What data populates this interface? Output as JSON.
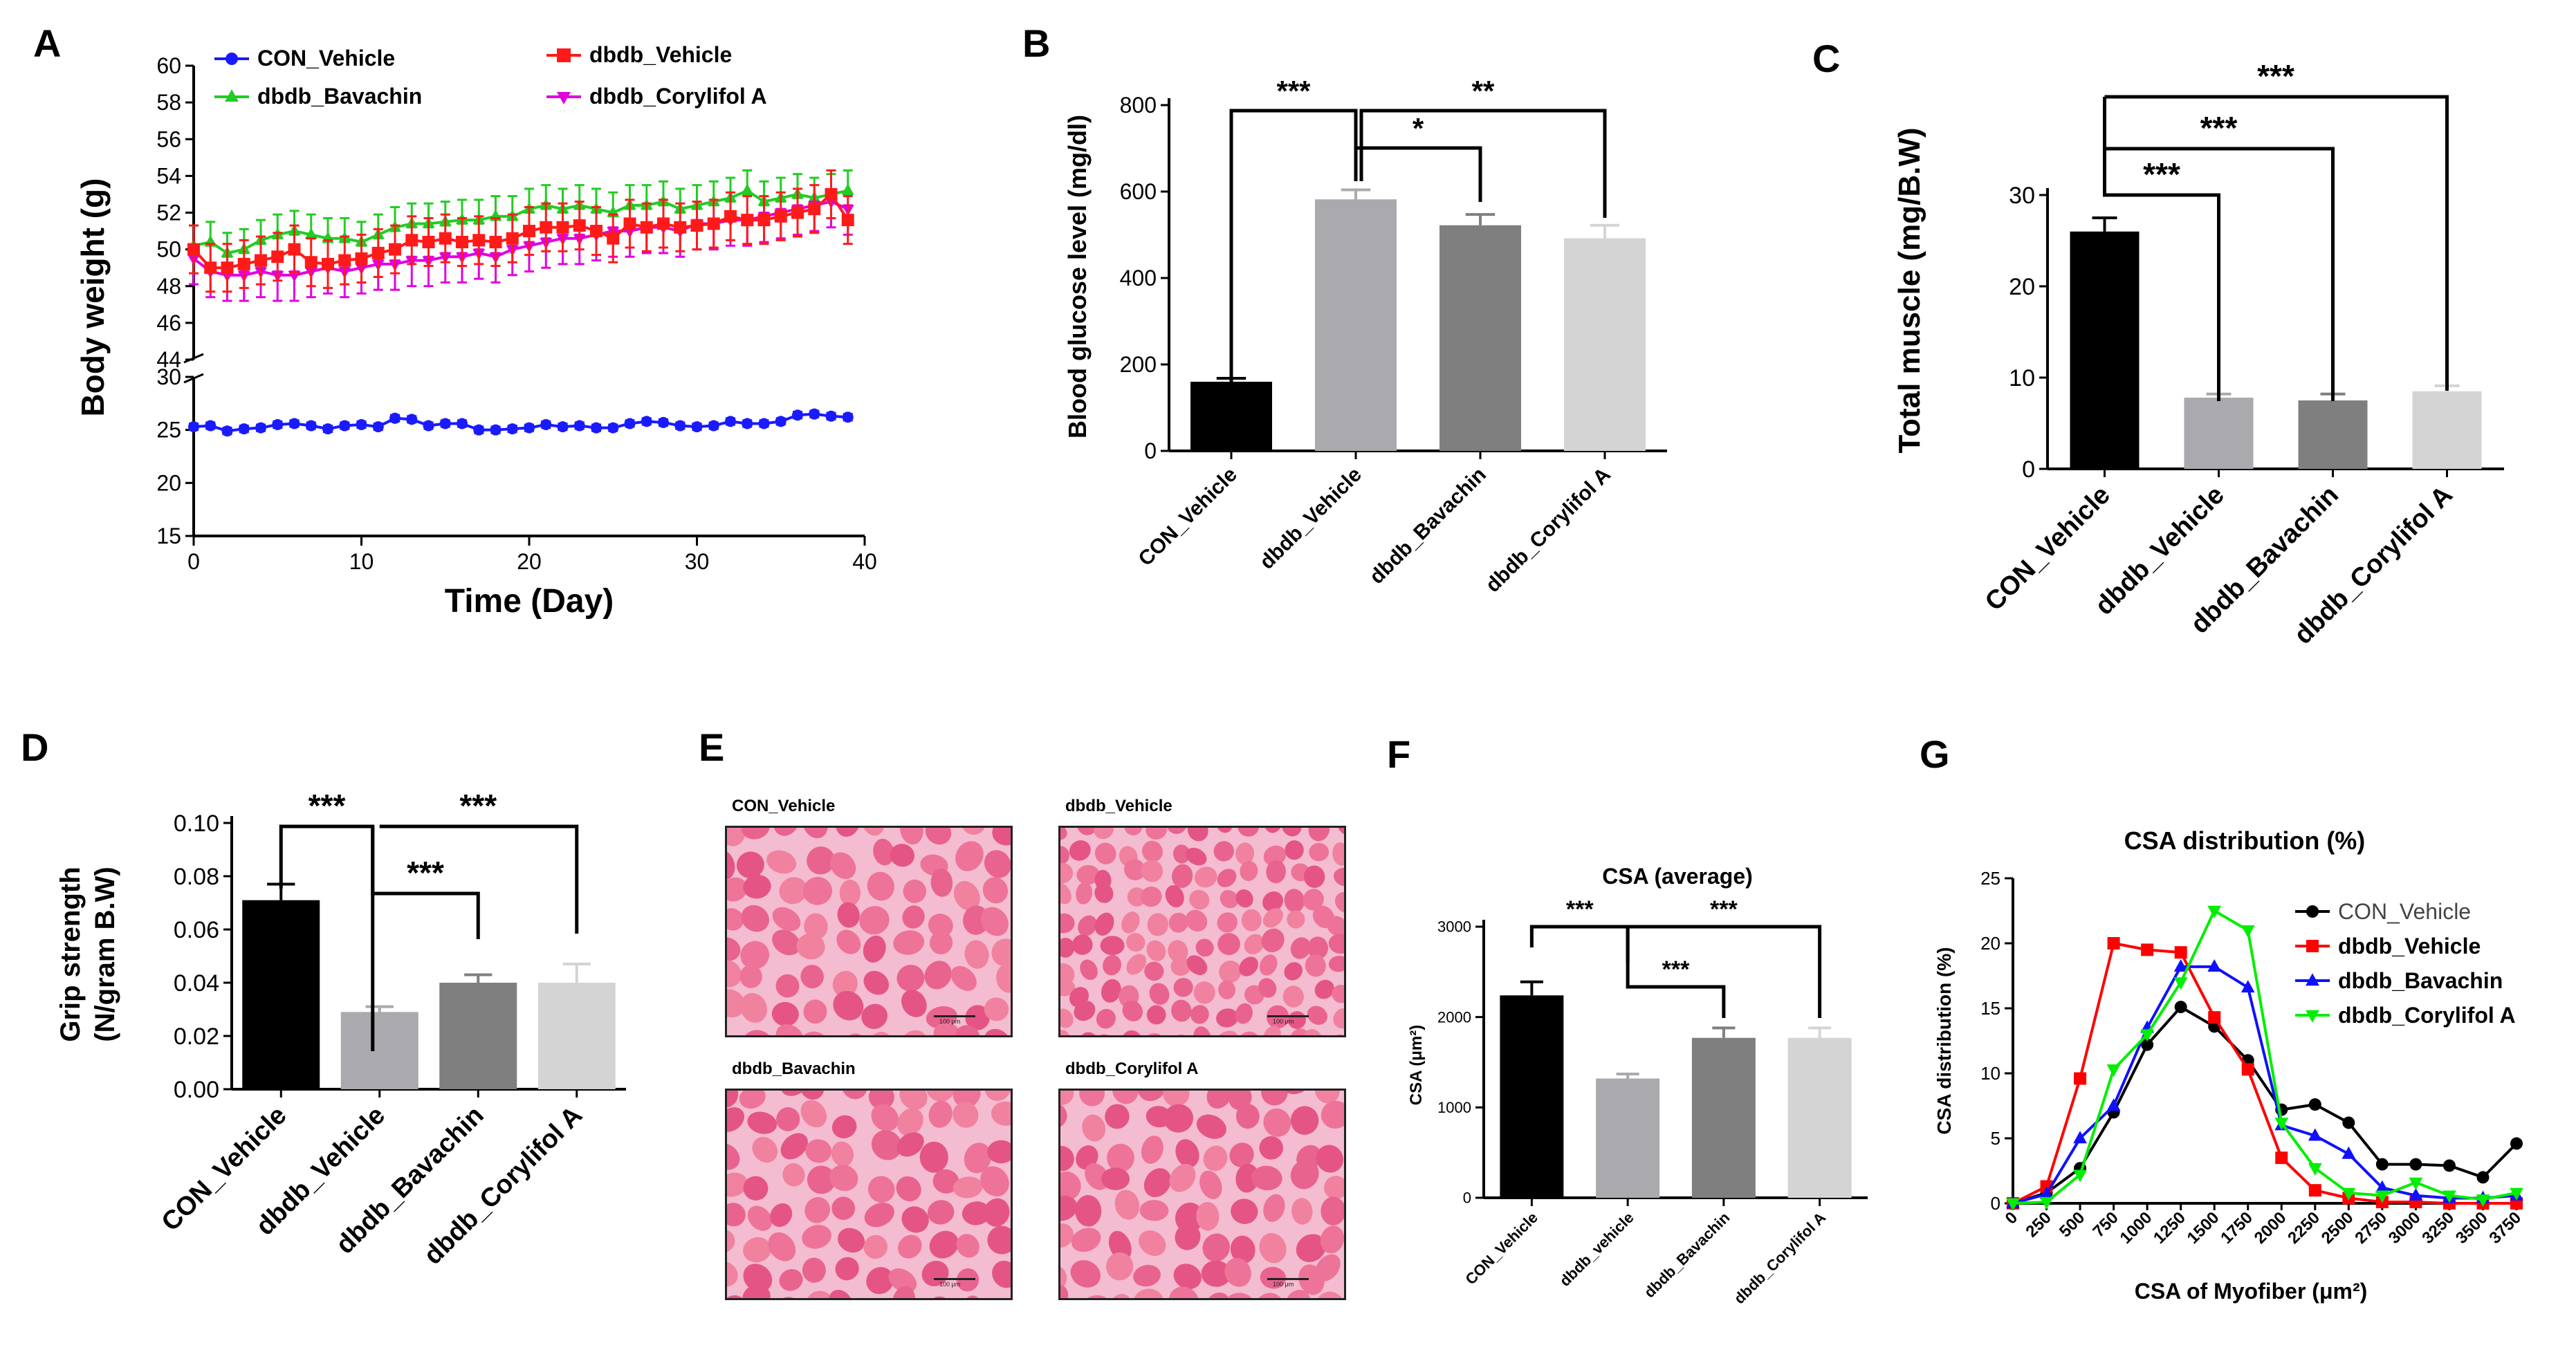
{
  "panel_letters": [
    "A",
    "B",
    "C",
    "D",
    "E",
    "F",
    "G"
  ],
  "colors": {
    "con": "#1a1aff",
    "dbdb": "#ff1a1a",
    "bav": "#22cc22",
    "cory": "#e000e0",
    "bar_black": "#000000",
    "bar_mid": "#a9a9ae",
    "bar_dark": "#7f7f7f",
    "bar_light": "#d4d4d4",
    "g_con": "#000000",
    "g_dbdb": "#ff0000",
    "g_bav": "#1010ff",
    "g_cory": "#00ee00",
    "he_stain": "#e85b8e"
  },
  "chart_data": [
    {
      "panel": "A",
      "type": "line",
      "xlabel": "Time (Day)",
      "ylabel": "Body weight (g)",
      "xlim": [
        0,
        40
      ],
      "xticks": [
        "0",
        "10",
        "20",
        "30",
        "40"
      ],
      "ylim_upper": [
        44,
        60
      ],
      "yticks_upper": [
        "44",
        "46",
        "48",
        "50",
        "52",
        "54",
        "56",
        "58",
        "60"
      ],
      "ylim_lower": [
        15,
        30
      ],
      "yticks_lower": [
        "15",
        "20",
        "25",
        "30"
      ],
      "legend": [
        "CON_Vehicle",
        "dbdb_Vehicle",
        "dbdb_Bavachin",
        "dbdb_Corylifol A"
      ],
      "series": [
        {
          "name": "CON_Vehicle",
          "x": [
            0,
            1,
            2,
            3,
            4,
            5,
            6,
            7,
            8,
            9,
            10,
            11,
            12,
            13,
            14,
            15,
            16,
            17,
            18,
            19,
            20,
            21,
            22,
            23,
            24,
            25,
            26,
            27,
            28,
            29,
            30,
            31,
            32,
            33,
            34,
            35,
            36,
            37,
            38,
            39
          ],
          "values": [
            25.3,
            25.4,
            24.9,
            25.1,
            25.2,
            25.5,
            25.6,
            25.4,
            25.1,
            25.4,
            25.5,
            25.3,
            26.1,
            26.0,
            25.4,
            25.6,
            25.6,
            25.0,
            25.0,
            25.1,
            25.2,
            25.5,
            25.3,
            25.4,
            25.2,
            25.2,
            25.6,
            25.8,
            25.7,
            25.4,
            25.3,
            25.4,
            25.8,
            25.6,
            25.6,
            25.8,
            26.4,
            26.5,
            26.3,
            26.2
          ],
          "err": 0.3
        },
        {
          "name": "dbdb_Vehicle",
          "x": [
            0,
            1,
            2,
            3,
            4,
            5,
            6,
            7,
            8,
            9,
            10,
            11,
            12,
            13,
            14,
            15,
            16,
            17,
            18,
            19,
            20,
            21,
            22,
            23,
            24,
            25,
            26,
            27,
            28,
            29,
            30,
            31,
            32,
            33,
            34,
            35,
            36,
            37,
            38,
            39
          ],
          "values": [
            50.0,
            49.0,
            49.0,
            49.2,
            49.4,
            49.6,
            50.0,
            49.3,
            49.2,
            49.4,
            49.5,
            49.8,
            50.0,
            50.5,
            50.4,
            50.6,
            50.4,
            50.5,
            50.4,
            50.6,
            51.0,
            51.2,
            51.2,
            51.3,
            51.0,
            50.6,
            51.4,
            51.2,
            51.4,
            51.2,
            51.3,
            51.4,
            51.8,
            51.6,
            51.6,
            51.8,
            52.0,
            52.2,
            53.0,
            51.6
          ],
          "err": 1.3
        },
        {
          "name": "dbdb_Bavachin",
          "x": [
            0,
            1,
            2,
            3,
            4,
            5,
            6,
            7,
            8,
            9,
            10,
            11,
            12,
            13,
            14,
            15,
            16,
            17,
            18,
            19,
            20,
            21,
            22,
            23,
            24,
            25,
            26,
            27,
            28,
            29,
            30,
            31,
            32,
            33,
            34,
            35,
            36,
            37,
            38,
            39
          ],
          "values": [
            50.2,
            50.4,
            49.8,
            50.0,
            50.5,
            50.8,
            51.0,
            50.8,
            50.6,
            50.6,
            50.4,
            50.8,
            51.2,
            51.4,
            51.4,
            51.5,
            51.6,
            51.6,
            51.8,
            51.8,
            52.2,
            52.4,
            52.2,
            52.4,
            52.2,
            52.0,
            52.4,
            52.4,
            52.6,
            52.2,
            52.4,
            52.6,
            52.8,
            53.2,
            52.6,
            52.8,
            53.0,
            52.8,
            53.0,
            53.2
          ],
          "err": 1.1
        },
        {
          "name": "dbdb_Corylifol A",
          "x": [
            0,
            1,
            2,
            3,
            4,
            5,
            6,
            7,
            8,
            9,
            10,
            11,
            12,
            13,
            14,
            15,
            16,
            17,
            18,
            19,
            20,
            21,
            22,
            23,
            24,
            25,
            26,
            27,
            28,
            29,
            30,
            31,
            32,
            33,
            34,
            35,
            36,
            37,
            38,
            39
          ],
          "values": [
            49.5,
            48.8,
            48.6,
            48.6,
            48.8,
            48.6,
            48.6,
            48.8,
            49.0,
            48.8,
            49.0,
            49.2,
            49.2,
            49.4,
            49.4,
            49.6,
            49.6,
            49.8,
            49.6,
            50.0,
            50.2,
            50.4,
            50.6,
            50.6,
            50.8,
            51.0,
            51.0,
            51.2,
            51.2,
            51.0,
            51.4,
            51.4,
            51.6,
            51.6,
            51.8,
            52.0,
            52.2,
            52.4,
            52.6,
            52.2
          ],
          "err": 1.4
        }
      ]
    },
    {
      "panel": "B",
      "type": "bar",
      "ylabel": "Blood glucose level (mg/dl)",
      "ylim": [
        0,
        800
      ],
      "yticks": [
        "0",
        "200",
        "400",
        "600",
        "800"
      ],
      "categories": [
        "CON_Vehicle",
        "dbdb_Vehicle",
        "dbdb_Bavachin",
        "dbdb_Corylifol A"
      ],
      "values": [
        160,
        582,
        522,
        492
      ],
      "errors": [
        8,
        22,
        25,
        30
      ],
      "significance": [
        {
          "from": 0,
          "to": 1,
          "label": "***"
        },
        {
          "from": 1,
          "to": 2,
          "label": "*"
        },
        {
          "from": 1,
          "to": 3,
          "label": "**"
        }
      ]
    },
    {
      "panel": "C",
      "type": "bar",
      "ylabel": "Total muscle (mg/B.W)",
      "ylim": [
        0,
        30
      ],
      "yticks": [
        "0",
        "10",
        "20",
        "30"
      ],
      "categories": [
        "CON_Vehicle",
        "dbdb_Vehicle",
        "dbdb_Bavachin",
        "dbdb_Corylifol A"
      ],
      "values": [
        26.0,
        7.8,
        7.5,
        8.5
      ],
      "errors": [
        1.5,
        0.4,
        0.7,
        0.6
      ],
      "significance": [
        {
          "from": 0,
          "to": 1,
          "label": "***"
        },
        {
          "from": 0,
          "to": 2,
          "label": "***"
        },
        {
          "from": 0,
          "to": 3,
          "label": "***"
        }
      ]
    },
    {
      "panel": "D",
      "type": "bar",
      "ylabel_lines": [
        "Grip strength",
        "(N/gram B.W)"
      ],
      "ylim": [
        0,
        0.1
      ],
      "yticks": [
        "0.00",
        "0.02",
        "0.04",
        "0.06",
        "0.08",
        "0.10"
      ],
      "categories": [
        "CON_Vehicle",
        "dbdb_Vehicle",
        "dbdb_Bavachin",
        "dbdb_Corylifol A"
      ],
      "values": [
        0.071,
        0.029,
        0.04,
        0.04
      ],
      "errors": [
        0.006,
        0.002,
        0.003,
        0.007
      ],
      "significance": [
        {
          "from": 0,
          "to": 1,
          "label": "***"
        },
        {
          "from": 1,
          "to": 2,
          "label": "***"
        },
        {
          "from": 1,
          "to": 3,
          "label": "***"
        }
      ]
    },
    {
      "panel": "F",
      "type": "bar",
      "title": "CSA (average)",
      "ylabel": "CSA (μm²)",
      "ylim": [
        0,
        3000
      ],
      "yticks": [
        "0",
        "1000",
        "2000",
        "3000"
      ],
      "categories": [
        "CON_Vehicle",
        "dbdb_vehicle",
        "dbdb_Bavachin",
        "dbdb_Corylifol A"
      ],
      "values": [
        2240,
        1320,
        1770,
        1770
      ],
      "errors": [
        150,
        50,
        110,
        110
      ],
      "significance": [
        {
          "from": 0,
          "to": 1,
          "label": "***"
        },
        {
          "from": 1,
          "to": 2,
          "label": "***"
        },
        {
          "from": 1,
          "to": 3,
          "label": "***"
        }
      ]
    },
    {
      "panel": "G",
      "type": "line",
      "title": "CSA distribution  (%)",
      "xlabel": "CSA of Myofiber (μm²)",
      "ylabel": "CSA distribution (%)",
      "ylim": [
        0,
        25
      ],
      "yticks": [
        "0",
        "5",
        "10",
        "15",
        "20",
        "25"
      ],
      "x": [
        0,
        250,
        500,
        750,
        1000,
        1250,
        1500,
        1750,
        2000,
        2250,
        2500,
        2750,
        3000,
        3250,
        3500,
        3750
      ],
      "xticks": [
        "0",
        "250",
        "500",
        "750",
        "1000",
        "1250",
        "1500",
        "1750",
        "2000",
        "2250",
        "2500",
        "2750",
        "3000",
        "3250",
        "3500",
        "3750"
      ],
      "legend": [
        "CON_Vehicle",
        "dbdb_Vehicle",
        "dbdb_Bavachin",
        "dbdb_Corylifol A"
      ],
      "series": [
        {
          "name": "CON_Vehicle",
          "marker": "circle",
          "values": [
            0,
            0.8,
            2.7,
            7.0,
            12.2,
            15.1,
            13.6,
            11.0,
            7.2,
            7.6,
            6.2,
            3.0,
            3.0,
            2.9,
            2.0,
            4.6
          ]
        },
        {
          "name": "dbdb_Vehicle",
          "marker": "square",
          "values": [
            0,
            1.3,
            9.6,
            20.0,
            19.5,
            19.3,
            14.3,
            10.3,
            3.5,
            1.0,
            0.4,
            0.1,
            0.1,
            0,
            0,
            0
          ]
        },
        {
          "name": "dbdb_Bavachin",
          "marker": "triangle",
          "values": [
            0,
            0.7,
            5.0,
            7.5,
            13.5,
            18.2,
            18.2,
            16.6,
            6.0,
            5.2,
            3.8,
            1.2,
            0.6,
            0.4,
            0.4,
            0.6
          ]
        },
        {
          "name": "dbdb_Corylifol A",
          "marker": "inv-triangle",
          "values": [
            0,
            0.1,
            2.2,
            10.3,
            13.0,
            17.0,
            22.5,
            21.0,
            6.2,
            2.7,
            0.8,
            0.6,
            1.6,
            0.6,
            0.3,
            0.8
          ]
        }
      ]
    }
  ],
  "histology": {
    "panel": "E",
    "labels": [
      "CON_Vehicle",
      "dbdb_Vehicle",
      "dbdb_Bavachin",
      "dbdb_Corylifol A"
    ],
    "scale_text": "100 μm"
  }
}
